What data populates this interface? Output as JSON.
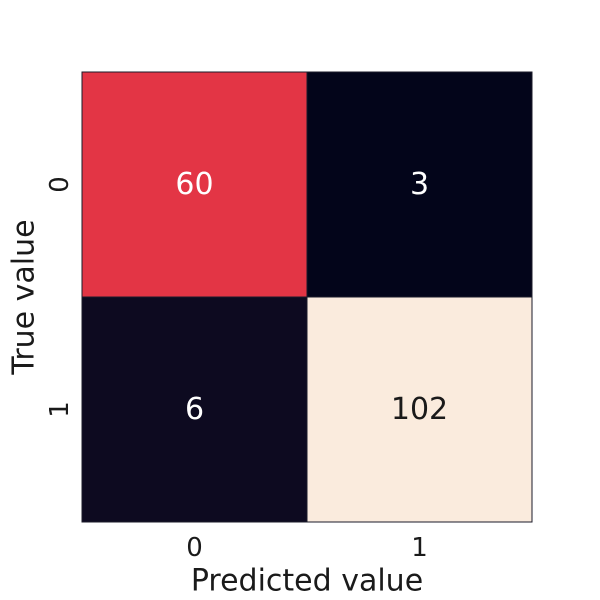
{
  "chart_data": {
    "type": "heatmap",
    "title": "",
    "xlabel": "Predicted value",
    "ylabel": "True value",
    "x_categories": [
      "0",
      "1"
    ],
    "y_categories": [
      "0",
      "1"
    ],
    "values": [
      [
        60,
        3
      ],
      [
        6,
        102
      ]
    ],
    "cell_colors": [
      [
        "#e33545",
        "#03051a"
      ],
      [
        "#0d0a20",
        "#faebdd"
      ]
    ],
    "text_colors": [
      [
        "#ffffff",
        "#ffffff"
      ],
      [
        "#ffffff",
        "#1a1a1a"
      ]
    ],
    "colorbar": false,
    "grid": false
  }
}
